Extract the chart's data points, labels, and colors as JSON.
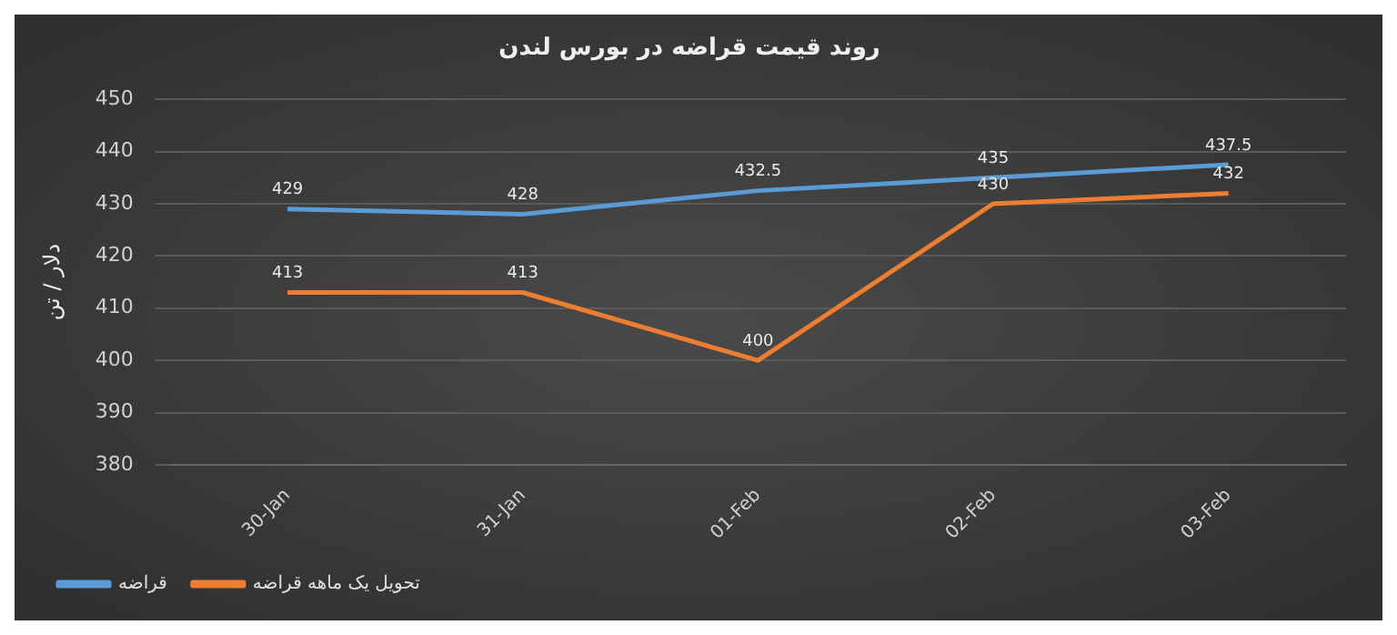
{
  "chart_data": {
    "type": "line",
    "title": "روند قیمت قراضه در بورس لندن",
    "ylabel": "دلار / تن",
    "categories": [
      "30-Jan",
      "31-Jan",
      "01-Feb",
      "02-Feb",
      "03-Feb"
    ],
    "series": [
      {
        "name": "قراضه",
        "color": "#5b9bd5",
        "values": [
          429,
          428,
          432.5,
          435,
          437.5
        ]
      },
      {
        "name": "تحویل یک ماهه قراضه",
        "color": "#ed7d31",
        "values": [
          413,
          413,
          400,
          430,
          432
        ]
      }
    ],
    "ylim": [
      380,
      450
    ],
    "yticks": [
      380,
      390,
      400,
      410,
      420,
      430,
      440,
      450
    ],
    "grid": "y",
    "legend": "bottom",
    "data_labels": true,
    "marker": "none",
    "line_style": "solid"
  }
}
